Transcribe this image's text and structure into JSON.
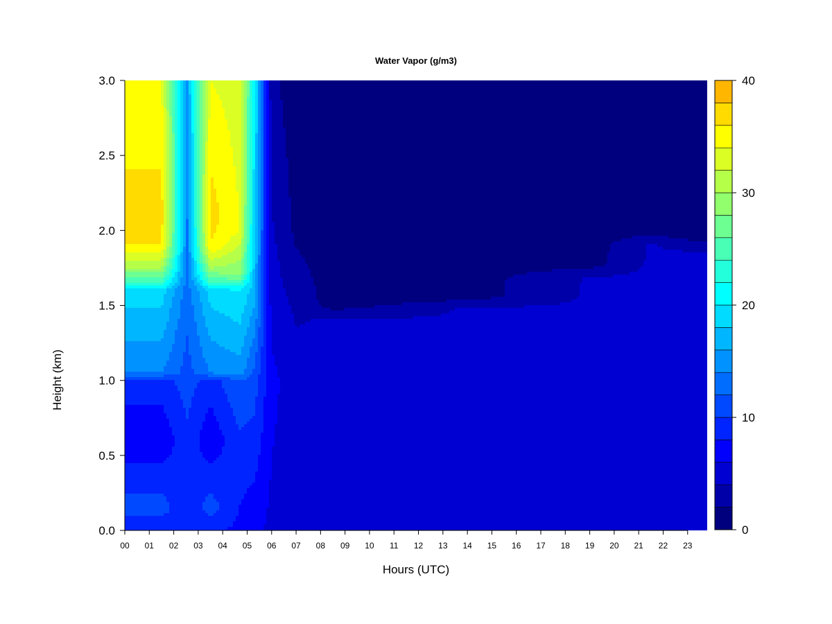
{
  "chart_data": {
    "type": "heatmap",
    "title": "Water Vapor (g/m3)",
    "xlabel": "Hours (UTC)",
    "ylabel": "Height (km)",
    "xlim": [
      0,
      23.8
    ],
    "ylim": [
      0,
      3.0
    ],
    "x_ticks": [
      "00",
      "01",
      "02",
      "03",
      "04",
      "05",
      "06",
      "07",
      "08",
      "09",
      "10",
      "11",
      "12",
      "13",
      "14",
      "15",
      "16",
      "17",
      "18",
      "19",
      "20",
      "21",
      "22",
      "23"
    ],
    "y_ticks": [
      "0.0",
      "0.5",
      "1.0",
      "1.5",
      "2.0",
      "2.5",
      "3.0"
    ],
    "colorbar": {
      "min": 0,
      "max": 40,
      "step": 2,
      "ticks": [
        "0",
        "10",
        "20",
        "30",
        "40"
      ],
      "colors": [
        "#00007f",
        "#0000a9",
        "#0000d2",
        "#0000fc",
        "#0024ff",
        "#0049ff",
        "#006dff",
        "#0092ff",
        "#00b6ff",
        "#00dbff",
        "#00ffff",
        "#24ffdb",
        "#49ffb6",
        "#6dff92",
        "#92ff6d",
        "#b6ff49",
        "#dbff24",
        "#ffff00",
        "#ffdb00",
        "#ffb600",
        "#ff9200",
        "#ff6d00",
        "#ff4900",
        "#ff2400",
        "#ff0000",
        "#d20000",
        "#a90000"
      ]
    },
    "water_vapor_profiles": [
      {
        "hour": 0.0,
        "z": [
          0.0,
          0.15,
          0.6,
          1.0,
          1.05,
          1.6,
          1.65,
          1.75,
          1.9,
          2.1,
          3.0
        ],
        "v": [
          8.5,
          11,
          6.5,
          9,
          14,
          19,
          24,
          30,
          36,
          37,
          34
        ]
      },
      {
        "hour": 1.5,
        "z": [
          0.0,
          0.15,
          0.6,
          1.0,
          1.05,
          1.6,
          1.65,
          1.75,
          1.9,
          2.1,
          3.0
        ],
        "v": [
          8.5,
          11,
          6.5,
          9,
          14,
          19,
          24,
          30,
          36,
          37,
          34
        ]
      },
      {
        "hour": 2.55,
        "z": [
          0.0,
          0.5,
          1.0,
          1.6,
          3.0
        ],
        "v": [
          8,
          9,
          11,
          13,
          16
        ]
      },
      {
        "hour": 3.5,
        "z": [
          0.0,
          0.15,
          0.6,
          1.0,
          1.05,
          1.6,
          1.65,
          1.75,
          1.9,
          2.1,
          3.0
        ],
        "v": [
          8.5,
          11,
          6.5,
          9,
          14,
          19,
          24,
          30,
          36,
          37,
          34
        ]
      },
      {
        "hour": 4.7,
        "z": [
          0.0,
          0.5,
          1.0,
          1.05,
          1.6,
          1.7,
          2.0,
          3.0
        ],
        "v": [
          7.5,
          9,
          12,
          15,
          20,
          28,
          34,
          33
        ]
      },
      {
        "hour": 5.3,
        "z": [
          0.0,
          1.0,
          1.6,
          3.0
        ],
        "v": [
          6.5,
          11,
          17,
          21
        ]
      },
      {
        "hour": 6.0,
        "z": [
          0.0,
          1.0,
          1.6,
          3.0
        ],
        "v": [
          5.5,
          6.5,
          5.0,
          2.5
        ]
      },
      {
        "hour": 7.0,
        "z": [
          0.0,
          1.0,
          1.5,
          2.0,
          3.0
        ],
        "v": [
          5.0,
          5.0,
          3.6,
          1.5,
          0.8
        ]
      },
      {
        "hour": 8.5,
        "z": [
          0.0,
          1.0,
          1.4,
          1.5,
          3.0
        ],
        "v": [
          4.8,
          4.8,
          4.2,
          1.0,
          0.6
        ]
      },
      {
        "hour": 14.0,
        "z": [
          0.0,
          1.0,
          1.48,
          1.56,
          3.0
        ],
        "v": [
          4.8,
          4.8,
          4.2,
          1.0,
          0.6
        ]
      },
      {
        "hour": 19.0,
        "z": [
          0.0,
          1.0,
          1.68,
          1.78,
          3.0
        ],
        "v": [
          4.8,
          4.8,
          4.2,
          1.0,
          0.6
        ]
      },
      {
        "hour": 21.5,
        "z": [
          0.0,
          0.5,
          1.2,
          1.9,
          2.0,
          3.0
        ],
        "v": [
          5.2,
          5.8,
          5.2,
          4.2,
          1.0,
          0.6
        ]
      },
      {
        "hour": 23.8,
        "z": [
          0.0,
          1.0,
          1.85,
          1.95,
          3.0
        ],
        "v": [
          4.8,
          4.8,
          4.2,
          1.0,
          0.6
        ]
      }
    ]
  }
}
